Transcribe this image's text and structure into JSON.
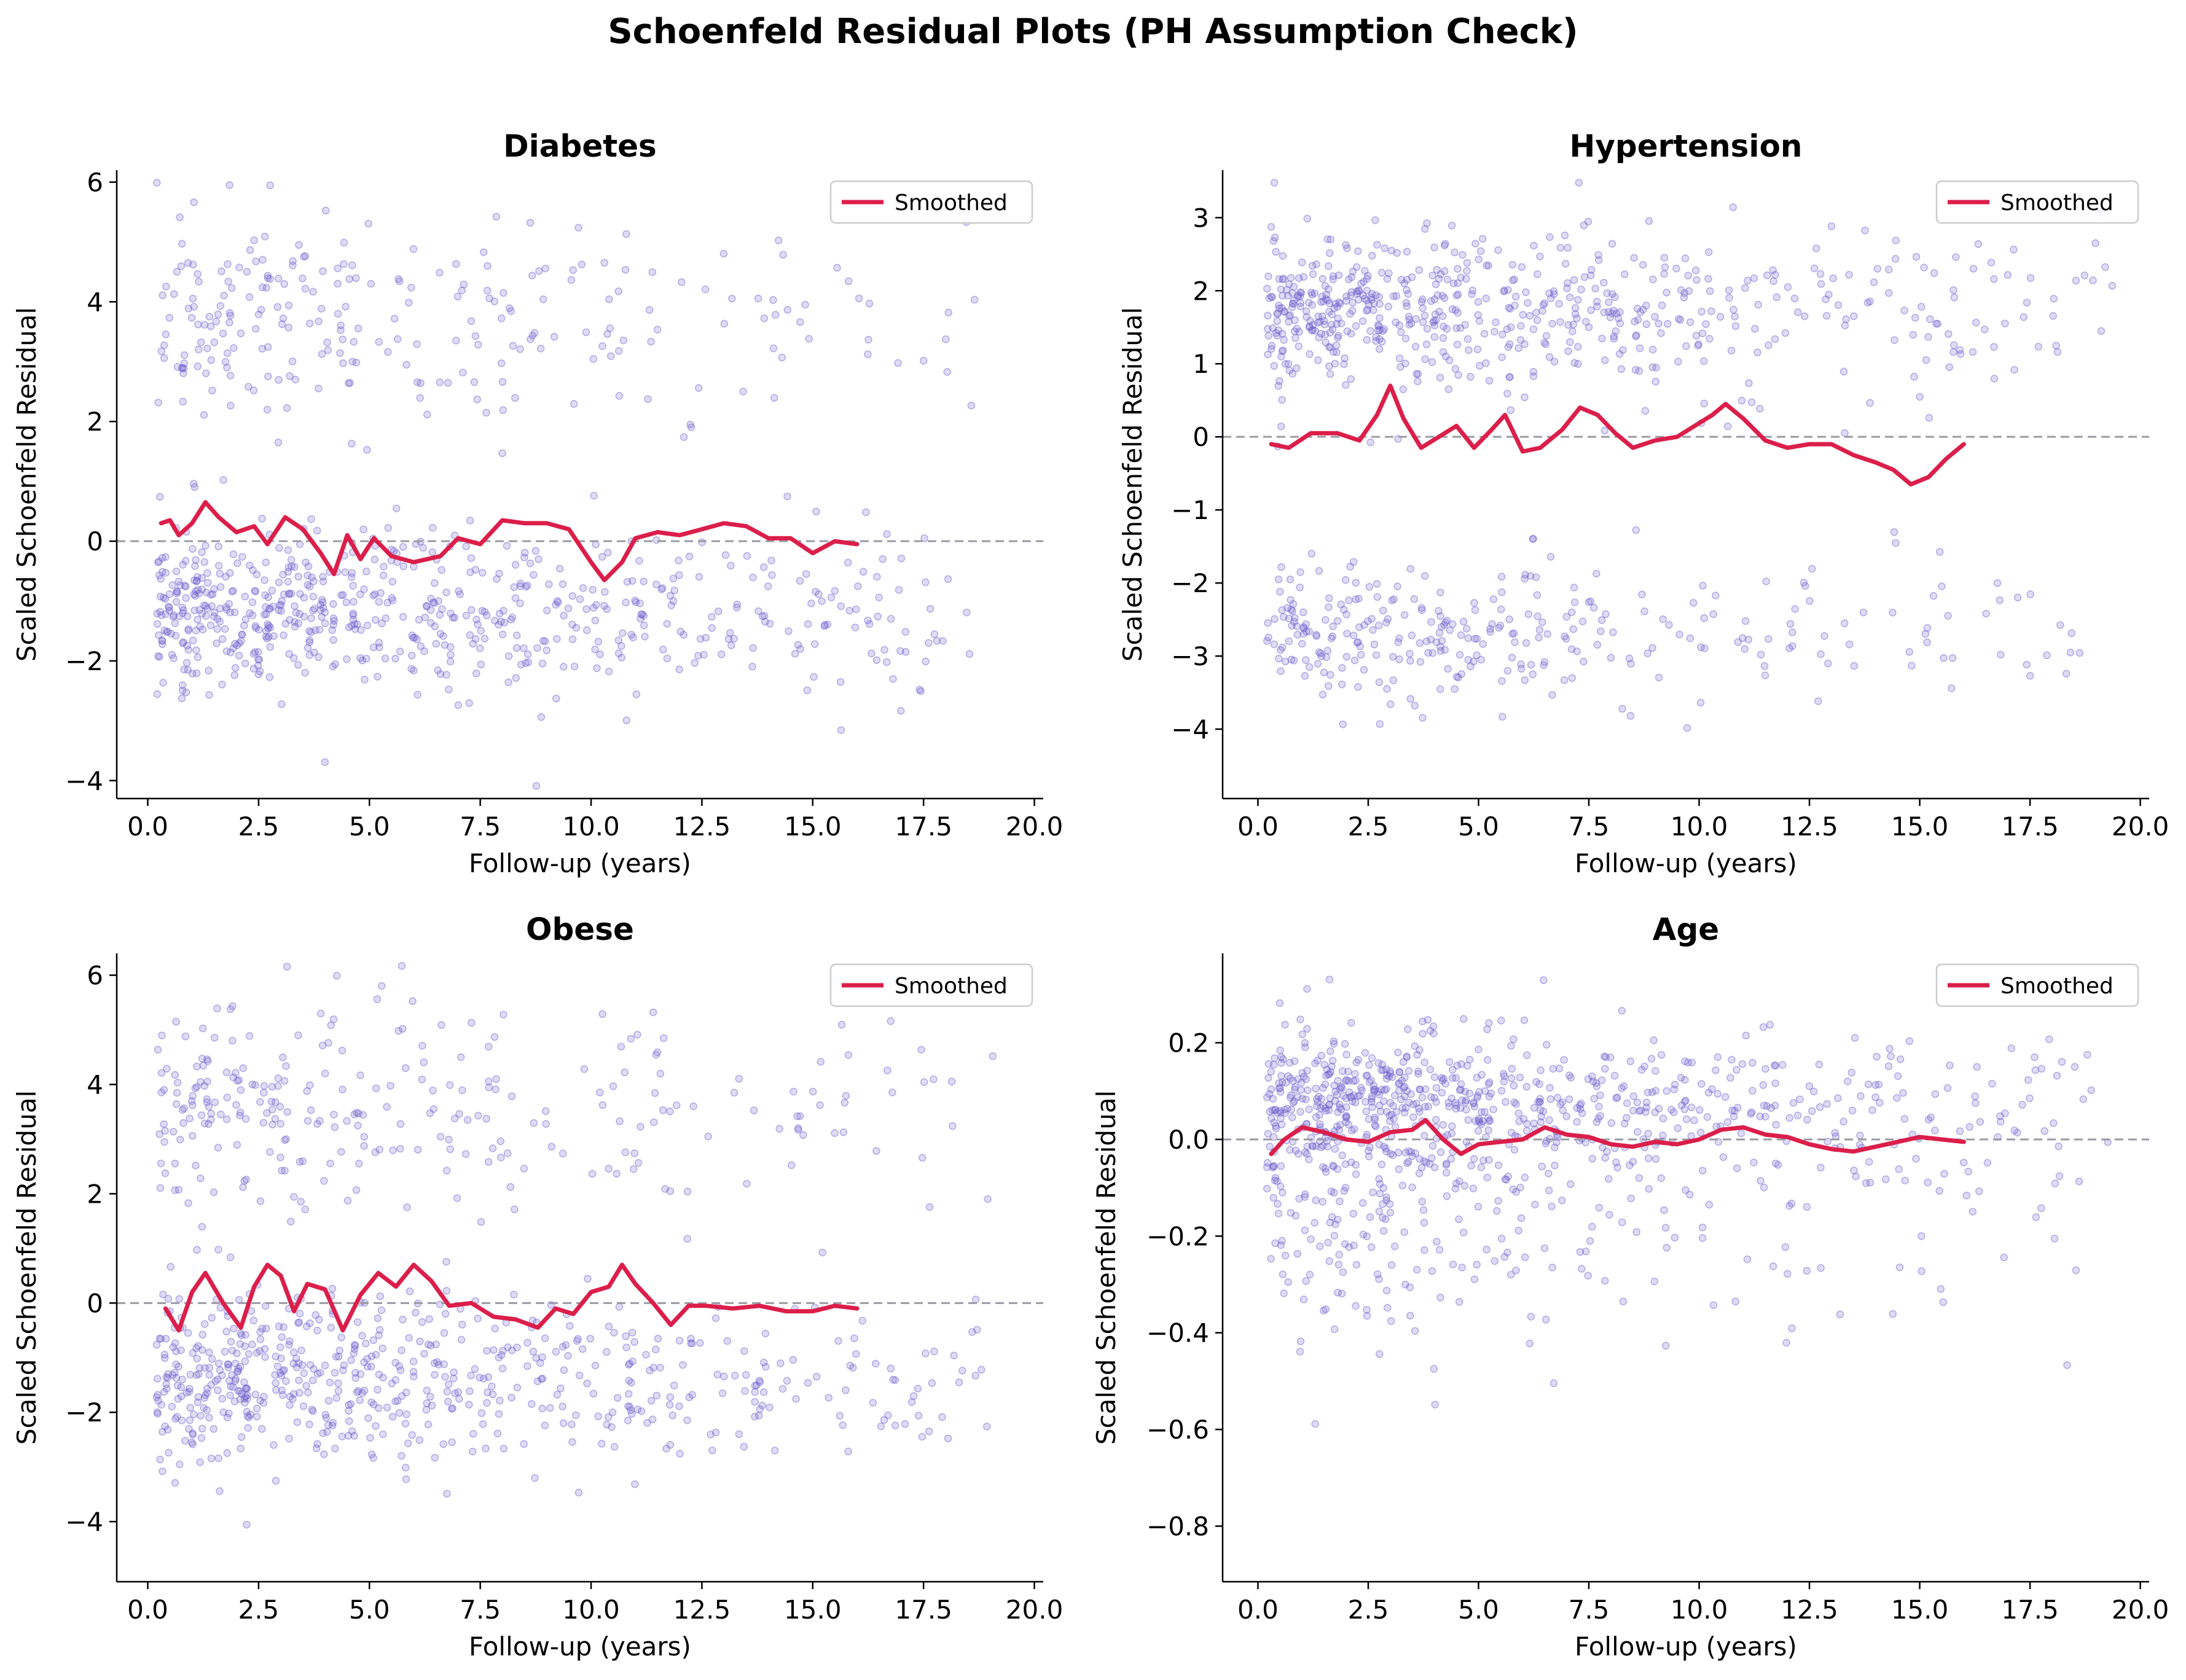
{
  "figure": {
    "title": "Schoenfeld Residual Plots (PH Assumption Check)"
  },
  "colors": {
    "points": "#6a5acd",
    "smoothed": "#dc1e4a",
    "zero_line": "#9a9aa4"
  },
  "chart_data": [
    {
      "type": "scatter",
      "title": "Diabetes",
      "xlabel": "Follow-up (years)",
      "ylabel": "Scaled Schoenfeld Residual",
      "xlim": [
        -0.7,
        20.2
      ],
      "ylim": [
        -4.3,
        6.2
      ],
      "xticks": [
        0,
        2.5,
        5,
        7.5,
        10,
        12.5,
        15,
        17.5,
        20
      ],
      "xtick_labels": [
        "0.0",
        "2.5",
        "5.0",
        "7.5",
        "10.0",
        "12.5",
        "15.0",
        "17.5",
        "20.0"
      ],
      "yticks": [
        -4,
        -2,
        0,
        2,
        4,
        6
      ],
      "ytick_labels": [
        "−4",
        "−2",
        "0",
        "2",
        "4",
        "6"
      ],
      "legend": {
        "position": "upper-right",
        "entries": [
          "Smoothed"
        ]
      },
      "reference_line": {
        "y": 0,
        "style": "dashed"
      },
      "scatter_clusters": [
        {
          "center": 3.7,
          "spread": 0.85,
          "count": 260,
          "xmax": 19.3,
          "decay": 6.5
        },
        {
          "center": -1.25,
          "spread": 0.72,
          "count": 640,
          "xmax": 18.8,
          "decay": 7.5
        }
      ],
      "series": [
        {
          "name": "Smoothed",
          "x": [
            0.3,
            0.5,
            0.7,
            1.0,
            1.3,
            1.6,
            2.0,
            2.4,
            2.7,
            3.1,
            3.5,
            3.9,
            4.2,
            4.5,
            4.8,
            5.1,
            5.5,
            6.0,
            6.6,
            7.0,
            7.5,
            8.0,
            8.5,
            9.0,
            9.5,
            10.0,
            10.3,
            10.7,
            11.0,
            11.5,
            12.0,
            12.5,
            13.0,
            13.5,
            14.0,
            14.5,
            15.0,
            15.5,
            16.0
          ],
          "y": [
            0.3,
            0.35,
            0.1,
            0.3,
            0.65,
            0.4,
            0.15,
            0.25,
            -0.05,
            0.4,
            0.2,
            -0.2,
            -0.55,
            0.1,
            -0.3,
            0.05,
            -0.25,
            -0.35,
            -0.25,
            0.05,
            -0.05,
            0.35,
            0.3,
            0.3,
            0.2,
            -0.35,
            -0.65,
            -0.35,
            0.05,
            0.15,
            0.1,
            0.2,
            0.3,
            0.25,
            0.05,
            0.05,
            -0.2,
            0.0,
            -0.05
          ]
        }
      ]
    },
    {
      "type": "scatter",
      "title": "Hypertension",
      "xlabel": "Follow-up (years)",
      "ylabel": "Scaled Schoenfeld Residual",
      "xlim": [
        -0.8,
        20.2
      ],
      "ylim": [
        -4.95,
        3.65
      ],
      "xticks": [
        0,
        2.5,
        5,
        7.5,
        10,
        12.5,
        15,
        17.5,
        20
      ],
      "xtick_labels": [
        "0.0",
        "2.5",
        "5.0",
        "7.5",
        "10.0",
        "12.5",
        "15.0",
        "17.5",
        "20.0"
      ],
      "yticks": [
        -4,
        -3,
        -2,
        -1,
        0,
        1,
        2,
        3
      ],
      "ytick_labels": [
        "−4",
        "−3",
        "−2",
        "−1",
        "0",
        "1",
        "2",
        "3"
      ],
      "legend": {
        "position": "upper-right",
        "entries": [
          "Smoothed"
        ]
      },
      "reference_line": {
        "y": 0,
        "style": "dashed"
      },
      "scatter_clusters": [
        {
          "center": 1.7,
          "spread": 0.55,
          "count": 620,
          "xmax": 19.4,
          "decay": 7.5
        },
        {
          "center": -2.7,
          "spread": 0.48,
          "count": 310,
          "xmax": 18.7,
          "decay": 6.5
        }
      ],
      "series": [
        {
          "name": "Smoothed",
          "x": [
            0.3,
            0.7,
            1.2,
            1.8,
            2.3,
            2.7,
            3.0,
            3.3,
            3.7,
            4.1,
            4.5,
            4.9,
            5.3,
            5.6,
            6.0,
            6.4,
            6.9,
            7.3,
            7.7,
            8.1,
            8.5,
            9.0,
            9.5,
            9.9,
            10.3,
            10.6,
            11.0,
            11.5,
            12.0,
            12.5,
            13.0,
            13.5,
            14.0,
            14.4,
            14.8,
            15.2,
            15.6,
            16.0
          ],
          "y": [
            -0.1,
            -0.15,
            0.05,
            0.05,
            -0.05,
            0.3,
            0.7,
            0.25,
            -0.15,
            0.0,
            0.15,
            -0.15,
            0.1,
            0.3,
            -0.2,
            -0.15,
            0.1,
            0.4,
            0.3,
            0.05,
            -0.15,
            -0.05,
            0.0,
            0.15,
            0.3,
            0.45,
            0.25,
            -0.05,
            -0.15,
            -0.1,
            -0.1,
            -0.25,
            -0.35,
            -0.45,
            -0.65,
            -0.55,
            -0.3,
            -0.1
          ]
        }
      ]
    },
    {
      "type": "scatter",
      "title": "Obese",
      "xlabel": "Follow-up (years)",
      "ylabel": "Scaled Schoenfeld Residual",
      "xlim": [
        -0.7,
        20.2
      ],
      "ylim": [
        -5.1,
        6.4
      ],
      "xticks": [
        0,
        2.5,
        5,
        7.5,
        10,
        12.5,
        15,
        17.5,
        20
      ],
      "xtick_labels": [
        "0.0",
        "2.5",
        "5.0",
        "7.5",
        "10.0",
        "12.5",
        "15.0",
        "17.5",
        "20.0"
      ],
      "yticks": [
        -4,
        -2,
        0,
        2,
        4,
        6
      ],
      "ytick_labels": [
        "−4",
        "−2",
        "0",
        "2",
        "4",
        "6"
      ],
      "legend": {
        "position": "upper-right",
        "entries": [
          "Smoothed"
        ]
      },
      "reference_line": {
        "y": 0,
        "style": "dashed"
      },
      "scatter_clusters": [
        {
          "center": 3.5,
          "spread": 0.95,
          "count": 280,
          "xmax": 19.2,
          "decay": 6.5
        },
        {
          "center": -1.35,
          "spread": 0.8,
          "count": 620,
          "xmax": 19.2,
          "decay": 7.5
        }
      ],
      "series": [
        {
          "name": "Smoothed",
          "x": [
            0.4,
            0.7,
            1.0,
            1.3,
            1.7,
            2.1,
            2.4,
            2.7,
            3.0,
            3.3,
            3.6,
            4.0,
            4.4,
            4.8,
            5.2,
            5.6,
            6.0,
            6.4,
            6.8,
            7.3,
            7.8,
            8.3,
            8.8,
            9.2,
            9.6,
            10.0,
            10.4,
            10.7,
            11.0,
            11.4,
            11.8,
            12.2,
            12.6,
            13.2,
            13.8,
            14.4,
            15.0,
            15.5,
            16.0
          ],
          "y": [
            -0.1,
            -0.5,
            0.2,
            0.55,
            0.0,
            -0.45,
            0.3,
            0.7,
            0.5,
            -0.15,
            0.35,
            0.25,
            -0.5,
            0.15,
            0.55,
            0.3,
            0.7,
            0.4,
            -0.05,
            0.0,
            -0.25,
            -0.3,
            -0.45,
            -0.1,
            -0.2,
            0.2,
            0.3,
            0.7,
            0.35,
            0.0,
            -0.4,
            -0.05,
            -0.05,
            -0.1,
            -0.05,
            -0.15,
            -0.15,
            -0.05,
            -0.1
          ]
        }
      ]
    },
    {
      "type": "scatter",
      "title": "Age",
      "xlabel": "Follow-up (years)",
      "ylabel": "Scaled Schoenfeld Residual",
      "xlim": [
        -0.8,
        20.2
      ],
      "ylim": [
        -0.915,
        0.385
      ],
      "xticks": [
        0,
        2.5,
        5,
        7.5,
        10,
        12.5,
        15,
        17.5,
        20
      ],
      "xtick_labels": [
        "0.0",
        "2.5",
        "5.0",
        "7.5",
        "10.0",
        "12.5",
        "15.0",
        "17.5",
        "20.0"
      ],
      "yticks": [
        -0.8,
        -0.6,
        -0.4,
        -0.2,
        0.0,
        0.2
      ],
      "ytick_labels": [
        "−0.8",
        "−0.6",
        "−0.4",
        "−0.2",
        "0.0",
        "0.2"
      ],
      "legend": {
        "position": "upper-right",
        "entries": [
          "Smoothed"
        ]
      },
      "reference_line": {
        "y": 0,
        "style": "dashed"
      },
      "scatter_clusters": [
        {
          "center": 0.08,
          "spread": 0.07,
          "count": 620,
          "xmax": 19.4,
          "decay": 7.0
        },
        {
          "center": -0.12,
          "spread": 0.15,
          "count": 340,
          "xmax": 18.7,
          "decay": 6.5
        }
      ],
      "series": [
        {
          "name": "Smoothed",
          "x": [
            0.3,
            0.6,
            1.0,
            1.5,
            2.0,
            2.5,
            3.0,
            3.5,
            3.8,
            4.2,
            4.6,
            5.0,
            5.5,
            6.0,
            6.5,
            7.0,
            7.5,
            8.0,
            8.5,
            9.0,
            9.5,
            10.0,
            10.5,
            11.0,
            11.5,
            12.0,
            12.5,
            13.0,
            13.5,
            14.0,
            14.5,
            15.0,
            15.5,
            16.0
          ],
          "y": [
            -0.03,
            0.0,
            0.025,
            0.015,
            0.0,
            -0.005,
            0.015,
            0.02,
            0.04,
            0.0,
            -0.03,
            -0.01,
            -0.005,
            0.0,
            0.025,
            0.01,
            0.005,
            -0.01,
            -0.015,
            -0.005,
            -0.01,
            0.0,
            0.02,
            0.025,
            0.01,
            0.005,
            -0.01,
            -0.02,
            -0.025,
            -0.015,
            -0.005,
            0.005,
            0.0,
            -0.005
          ]
        }
      ]
    }
  ]
}
